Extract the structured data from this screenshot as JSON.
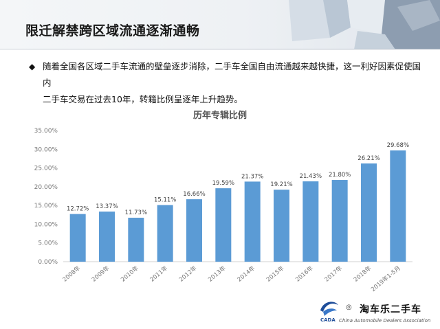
{
  "header": {
    "title": "限迁解禁跨区域流通逐渐通畅"
  },
  "description": {
    "bullet": "◆",
    "line1": "随着全国各区域二手车流通的壁垒逐步消除，二手车全国自由流通越来越快捷，这一利好因素促使国内",
    "line2": "二手车交易在过去10年，转籍比例呈逐年上升趋势。"
  },
  "chart_data": {
    "type": "bar",
    "title": "历年专辑比例",
    "categories": [
      "2008年",
      "2009年",
      "2010年",
      "2011年",
      "2012年",
      "2013年",
      "2014年",
      "2015年",
      "2016年",
      "2017年",
      "2018年",
      "2019年1-5月"
    ],
    "values": [
      12.72,
      13.37,
      11.73,
      15.11,
      16.66,
      19.59,
      21.37,
      19.21,
      21.43,
      21.8,
      26.21,
      29.68
    ],
    "value_labels": [
      "12.72%",
      "13.37%",
      "11.73%",
      "15.11%",
      "16.66%",
      "19.59%",
      "21.37%",
      "19.21%",
      "21.43%",
      "21.80%",
      "26.21%",
      "29.68%"
    ],
    "yticks": [
      "0.00%",
      "5.00%",
      "10.00%",
      "15.00%",
      "20.00%",
      "25.00%",
      "30.00%",
      "35.00%"
    ],
    "ylim": [
      0,
      35
    ],
    "grid": false,
    "bar_color": "#5b9bd5"
  },
  "footer": {
    "wechat_mark": "◎",
    "watermark": "淘车乐二手车",
    "org_subtitle": "China Automobile Dealers Association",
    "logo_text": "CADA"
  }
}
